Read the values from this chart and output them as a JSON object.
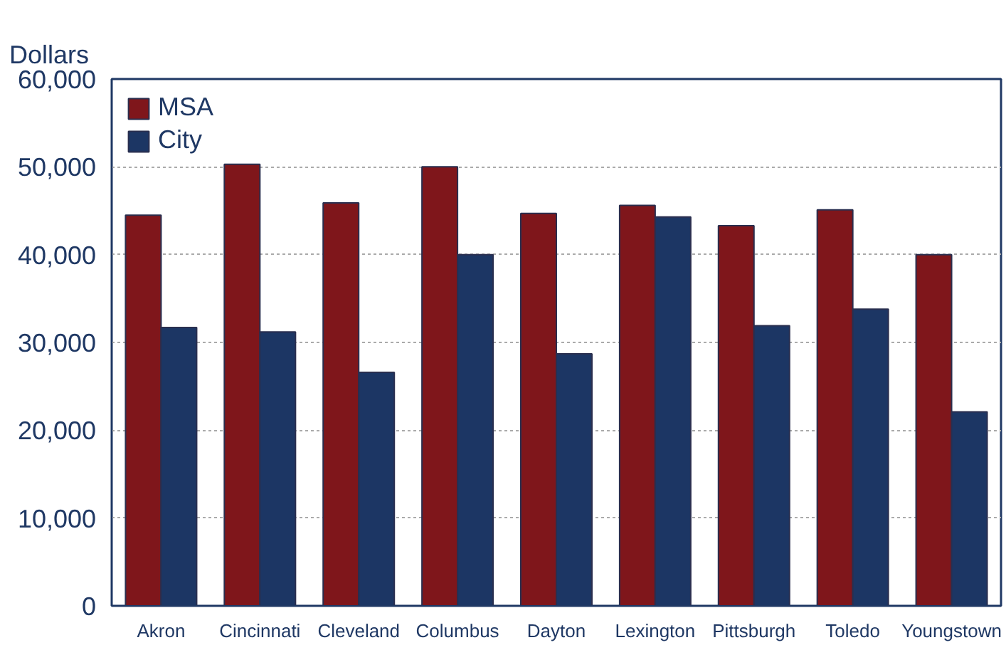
{
  "chart_data": {
    "type": "bar",
    "ylabel": "Dollars",
    "categories": [
      "Akron",
      "Cincinnati",
      "Cleveland",
      "Columbus",
      "Dayton",
      "Lexington",
      "Pittsburgh",
      "Toledo",
      "Youngstown"
    ],
    "series": [
      {
        "name": "MSA",
        "color": "#7f161b",
        "values": [
          44500,
          50300,
          45900,
          50000,
          44700,
          45600,
          43300,
          45100,
          40000
        ]
      },
      {
        "name": "City",
        "color": "#1c3664",
        "values": [
          31700,
          31200,
          26600,
          40000,
          28700,
          44300,
          31900,
          33800,
          22100
        ]
      }
    ],
    "ylim": [
      0,
      60000
    ],
    "yticks": [
      {
        "value": 0,
        "label": "0"
      },
      {
        "value": 10000,
        "label": "10,000"
      },
      {
        "value": 20000,
        "label": "20,000"
      },
      {
        "value": 30000,
        "label": "30,000"
      },
      {
        "value": 40000,
        "label": "40,000"
      },
      {
        "value": 50000,
        "label": "50,000"
      },
      {
        "value": 60000,
        "label": "60,000"
      }
    ],
    "grid": "y",
    "legend": "top left"
  }
}
